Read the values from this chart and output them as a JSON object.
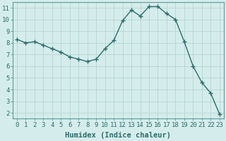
{
  "x": [
    0,
    1,
    2,
    3,
    4,
    5,
    6,
    7,
    8,
    9,
    10,
    11,
    12,
    13,
    14,
    15,
    16,
    17,
    18,
    19,
    20,
    21,
    22,
    23
  ],
  "y": [
    8.3,
    8.0,
    8.1,
    7.8,
    7.5,
    7.2,
    6.8,
    6.6,
    6.4,
    6.6,
    7.5,
    8.2,
    9.9,
    10.8,
    10.3,
    11.1,
    11.1,
    10.5,
    10.0,
    8.1,
    6.0,
    4.6,
    3.7,
    1.9
  ],
  "line_color": "#2e6b6b",
  "marker": "+",
  "marker_size": 4,
  "linewidth": 1.0,
  "bg_color": "#d4edec",
  "grid_color": "#b5d5d4",
  "xlabel": "Humidex (Indice chaleur)",
  "xlim": [
    -0.5,
    23.5
  ],
  "ylim": [
    1.5,
    11.5
  ],
  "xticks": [
    0,
    1,
    2,
    3,
    4,
    5,
    6,
    7,
    8,
    9,
    10,
    11,
    12,
    13,
    14,
    15,
    16,
    17,
    18,
    19,
    20,
    21,
    22,
    23
  ],
  "yticks": [
    2,
    3,
    4,
    5,
    6,
    7,
    8,
    9,
    10,
    11
  ],
  "tick_fontsize": 6.5,
  "xlabel_fontsize": 7.5
}
